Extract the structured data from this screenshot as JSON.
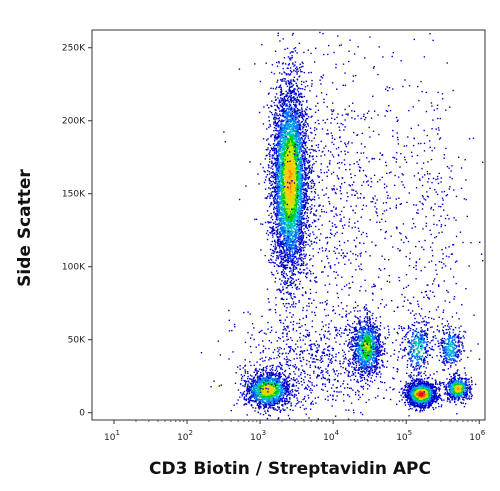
{
  "chart_data": {
    "type": "scatter",
    "plot_style": "flow cytometry density dot plot (pseudocolor)",
    "xlabel": "CD3 Biotin / Streptavidin APC",
    "ylabel": "Side Scatter",
    "x_scale": "log",
    "y_scale": "linear",
    "xlim": [
      5,
      1200000
    ],
    "ylim": [
      -5000,
      262144
    ],
    "x_ticks": [
      {
        "value": 10,
        "base": "10",
        "exp": "1"
      },
      {
        "value": 100,
        "base": "10",
        "exp": "2"
      },
      {
        "value": 1000,
        "base": "10",
        "exp": "3"
      },
      {
        "value": 10000,
        "base": "10",
        "exp": "4"
      },
      {
        "value": 100000,
        "base": "10",
        "exp": "5"
      },
      {
        "value": 1000000,
        "base": "10",
        "exp": "6"
      }
    ],
    "y_ticks": [
      {
        "value": 0,
        "label": "0"
      },
      {
        "value": 50000,
        "label": "50K"
      },
      {
        "value": 100000,
        "label": "100K"
      },
      {
        "value": 150000,
        "label": "150K"
      },
      {
        "value": 200000,
        "label": "200K"
      },
      {
        "value": 250000,
        "label": "250K"
      }
    ],
    "color_scale": [
      "#0000c8",
      "#0078ff",
      "#00c8c8",
      "#00c800",
      "#c8e600",
      "#ffc800",
      "#ff6400",
      "#ff0000"
    ],
    "populations": [
      {
        "x_log10_center": 3.4,
        "x_log10_sd": 0.12,
        "y_center": 160000,
        "y_sd": 32000,
        "count": 5200,
        "peak_density": 0.75
      },
      {
        "x_log10_center": 3.1,
        "x_log10_sd": 0.15,
        "y_center": 16000,
        "y_sd": 6000,
        "count": 1500,
        "peak_density": 0.7
      },
      {
        "x_log10_center": 4.45,
        "x_log10_sd": 0.1,
        "y_center": 45000,
        "y_sd": 10000,
        "count": 1100,
        "peak_density": 0.55
      },
      {
        "x_log10_center": 5.2,
        "x_log10_sd": 0.1,
        "y_center": 13000,
        "y_sd": 4000,
        "count": 1800,
        "peak_density": 1.0
      },
      {
        "x_log10_center": 5.7,
        "x_log10_sd": 0.08,
        "y_center": 17000,
        "y_sd": 4000,
        "count": 600,
        "peak_density": 0.75
      },
      {
        "x_log10_center": 5.15,
        "x_log10_sd": 0.1,
        "y_center": 45000,
        "y_sd": 9000,
        "count": 350,
        "peak_density": 0.35
      },
      {
        "x_log10_center": 5.6,
        "x_log10_sd": 0.08,
        "y_center": 45000,
        "y_sd": 8000,
        "count": 300,
        "peak_density": 0.35
      },
      {
        "x_log10_center": 4.0,
        "x_log10_sd": 0.5,
        "y_center": 140000,
        "y_sd": 60000,
        "count": 900,
        "peak_density": 0.0
      },
      {
        "x_log10_center": 5.3,
        "x_log10_sd": 0.3,
        "y_center": 120000,
        "y_sd": 60000,
        "count": 400,
        "peak_density": 0.0
      },
      {
        "x_log10_center": 3.7,
        "x_log10_sd": 0.5,
        "y_center": 35000,
        "y_sd": 18000,
        "count": 700,
        "peak_density": 0.0
      }
    ]
  }
}
